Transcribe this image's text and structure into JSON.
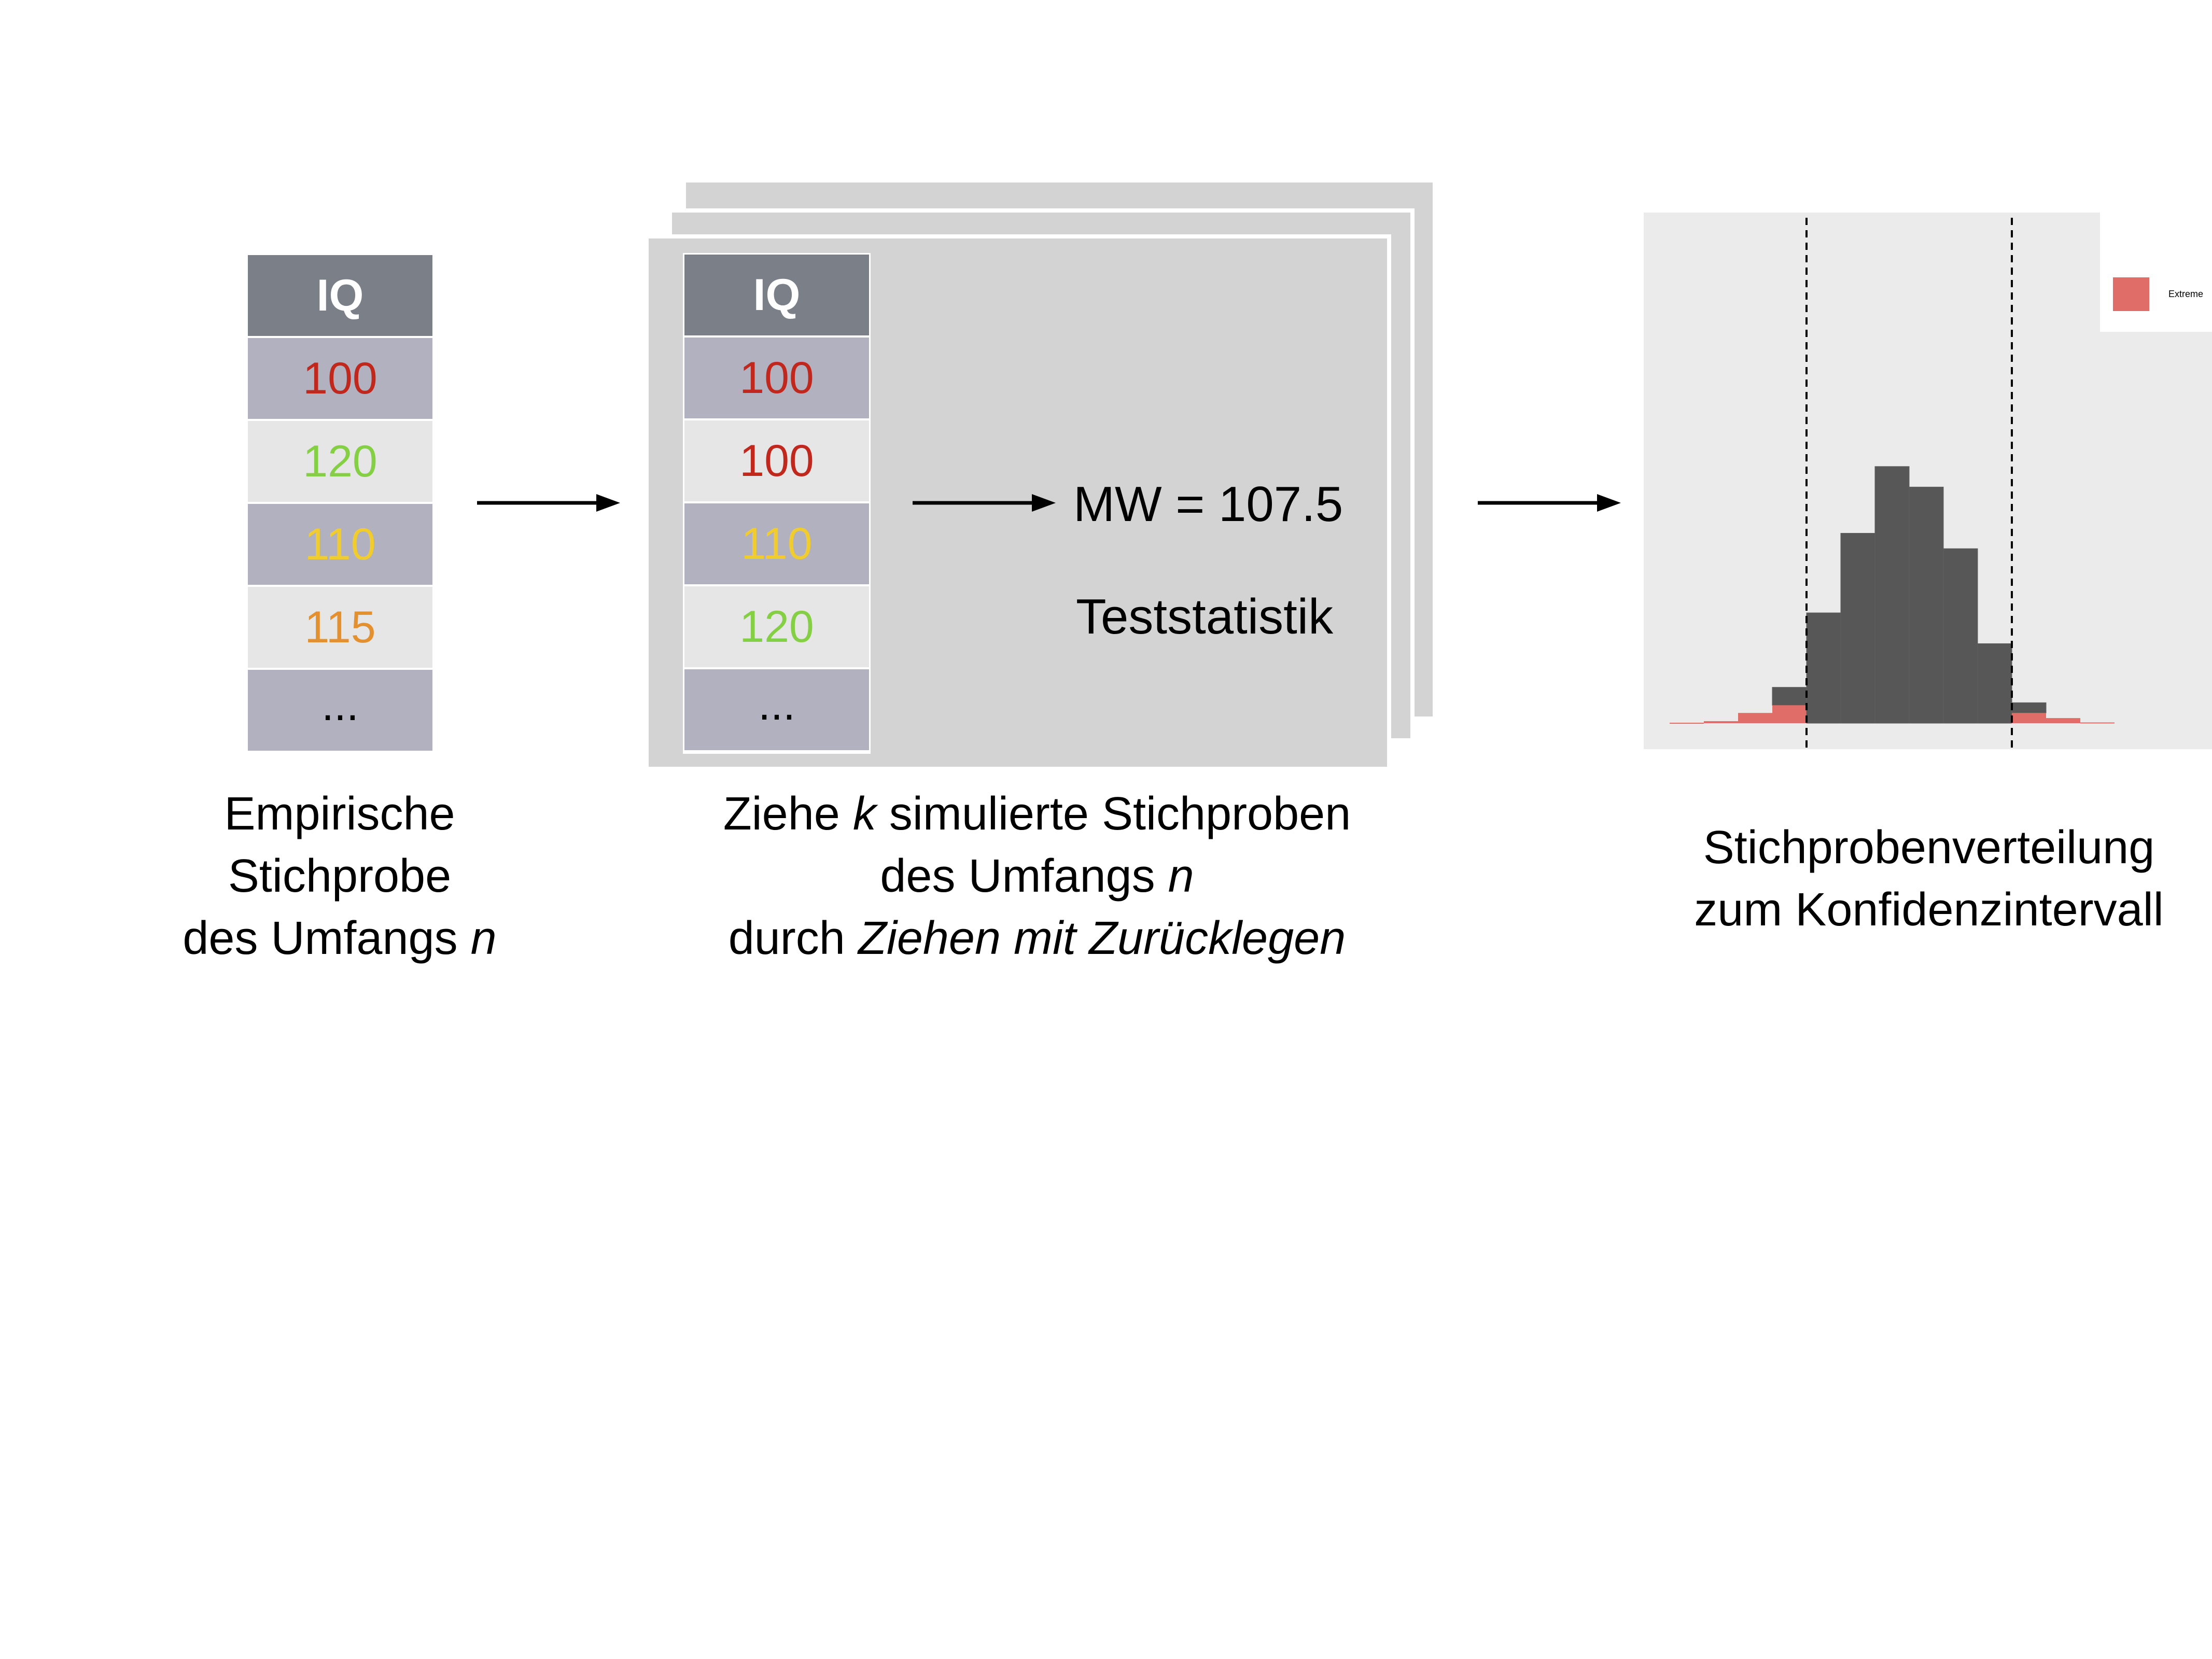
{
  "table_a": {
    "header": "IQ",
    "rows": [
      {
        "value": "100",
        "color": "#c0281d"
      },
      {
        "value": "120",
        "color": "#84cf44"
      },
      {
        "value": "110",
        "color": "#f1cc2e"
      },
      {
        "value": "115",
        "color": "#e4902f"
      },
      {
        "value": "...",
        "color": "#000000"
      }
    ]
  },
  "table_b": {
    "header": "IQ",
    "rows": [
      {
        "value": "100",
        "color": "#c0281d"
      },
      {
        "value": "100",
        "color": "#c0281d"
      },
      {
        "value": "110",
        "color": "#f1cc2e"
      },
      {
        "value": "120",
        "color": "#84cf44"
      },
      {
        "value": "...",
        "color": "#000000"
      }
    ]
  },
  "statistic": {
    "mean_text": "MW = 107.5",
    "label": "Teststatistik"
  },
  "captions": {
    "empirical": [
      "Empirische",
      "Stichprobe",
      "des Umfangs "
    ],
    "empirical_n": "n",
    "simulated_line1_a": "Ziehe ",
    "simulated_line1_k": "k",
    "simulated_line1_b": " simulierte Stichproben",
    "simulated_line2_a": "des Umfangs ",
    "simulated_line2_n": "n",
    "simulated_line3_a": "durch ",
    "simulated_line3_b": "Ziehen mit Zurücklegen",
    "distribution": [
      "Stichprobenverteilung",
      "zum Konfidenzintervall"
    ]
  },
  "chart_data": {
    "type": "bar",
    "legend": {
      "label": "Extreme",
      "color": "#e06d68",
      "placement": "top-right"
    },
    "colors": {
      "extreme": "#e06d68",
      "middle": "#575757",
      "panel": "#ebebeb"
    },
    "bins": [
      {
        "total": 0.2,
        "extreme": 0.2
      },
      {
        "total": 0.8,
        "extreme": 0.8
      },
      {
        "total": 4.0,
        "extreme": 4.0
      },
      {
        "total": 14.0,
        "extreme": 7.0
      },
      {
        "total": 43.0,
        "extreme": 0
      },
      {
        "total": 74.0,
        "extreme": 0
      },
      {
        "total": 100.0,
        "extreme": 0
      },
      {
        "total": 92.0,
        "extreme": 0
      },
      {
        "total": 68.0,
        "extreme": 0
      },
      {
        "total": 31.0,
        "extreme": 0
      },
      {
        "total": 8.0,
        "extreme": 4.0
      },
      {
        "total": 2.0,
        "extreme": 2.0
      },
      {
        "total": 0.3,
        "extreme": 0.3
      }
    ],
    "lower_bound_bin": 4,
    "upper_bound_bin": 10,
    "ylim": [
      0,
      105
    ],
    "grid": false
  }
}
